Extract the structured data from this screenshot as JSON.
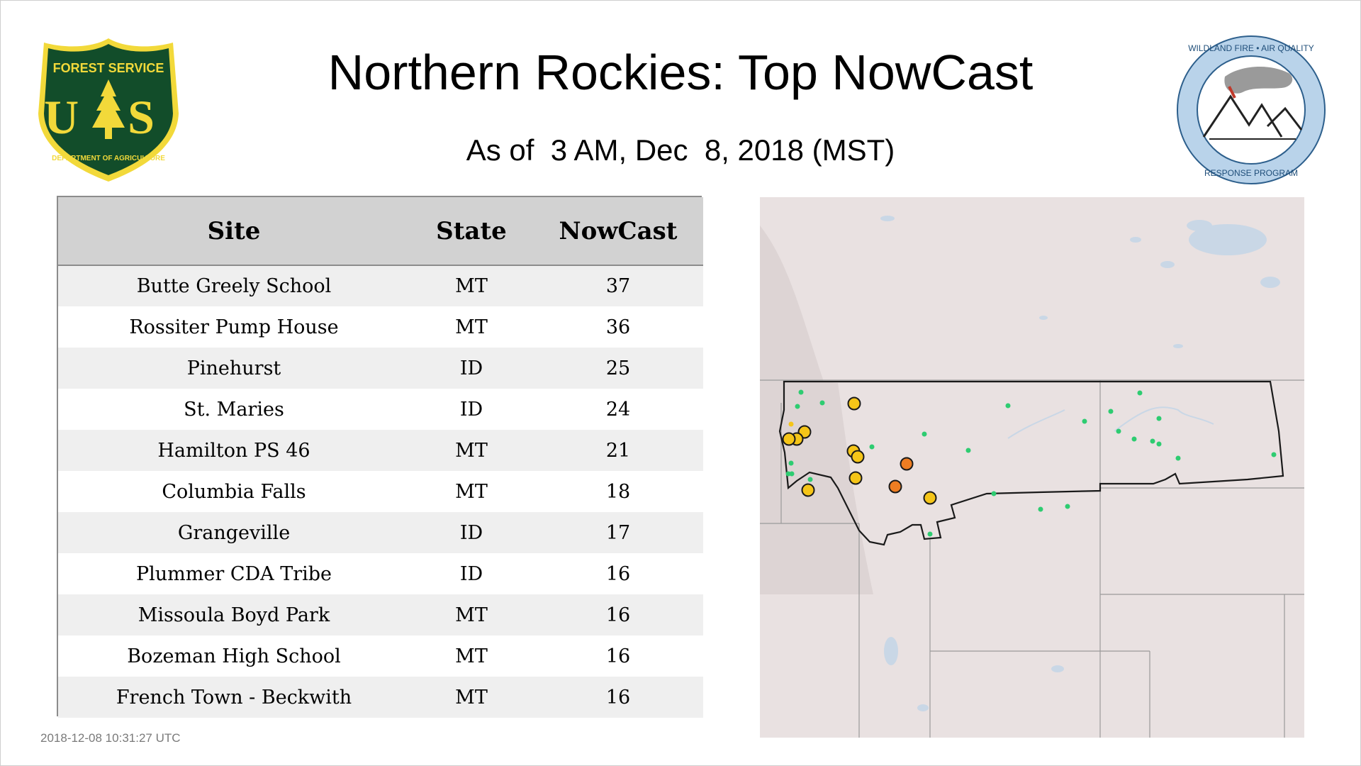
{
  "header": {
    "title": "Northern Rockies: Top NowCast",
    "subtitle": "As of  3 AM, Dec  8, 2018 (MST)"
  },
  "logos": {
    "forest_service": {
      "icon": "forest-service-shield-icon",
      "top_text": "FOREST SERVICE",
      "letters": "U S",
      "bottom_text": "DEPARTMENT OF AGRICULTURE"
    },
    "wildland_fire": {
      "icon": "wildland-fire-air-quality-seal-icon",
      "top_text": "WILDLAND FIRE • AIR QUALITY",
      "bottom_text": "RESPONSE PROGRAM"
    }
  },
  "table": {
    "headers": [
      "Site",
      "State",
      "NowCast"
    ],
    "rows": [
      {
        "site": "Butte Greely School",
        "state": "MT",
        "nowcast": "37"
      },
      {
        "site": "Rossiter Pump House",
        "state": "MT",
        "nowcast": "36"
      },
      {
        "site": "Pinehurst",
        "state": "ID",
        "nowcast": "25"
      },
      {
        "site": "St. Maries",
        "state": "ID",
        "nowcast": "24"
      },
      {
        "site": "Hamilton PS 46",
        "state": "MT",
        "nowcast": "21"
      },
      {
        "site": "Columbia Falls",
        "state": "MT",
        "nowcast": "18"
      },
      {
        "site": "Grangeville",
        "state": "ID",
        "nowcast": "17"
      },
      {
        "site": "Plummer CDA Tribe",
        "state": "ID",
        "nowcast": "16"
      },
      {
        "site": "Missoula Boyd Park",
        "state": "MT",
        "nowcast": "16"
      },
      {
        "site": "Bozeman High School",
        "state": "MT",
        "nowcast": "16"
      },
      {
        "site": "French Town - Beckwith",
        "state": "MT",
        "nowcast": "16"
      }
    ]
  },
  "map": {
    "colors": {
      "land": "#e9e1e1",
      "water": "#c9d7e6",
      "border": "#1a1a1a",
      "state_lines": "#9a9a9a",
      "good": "#2ecc71",
      "moderate": "#f5c518",
      "usg": "#ee7d22"
    },
    "legend_categories": [
      "good",
      "moderate",
      "usg"
    ]
  },
  "footer": {
    "timestamp": "2018-12-08 10:31:27 UTC"
  }
}
